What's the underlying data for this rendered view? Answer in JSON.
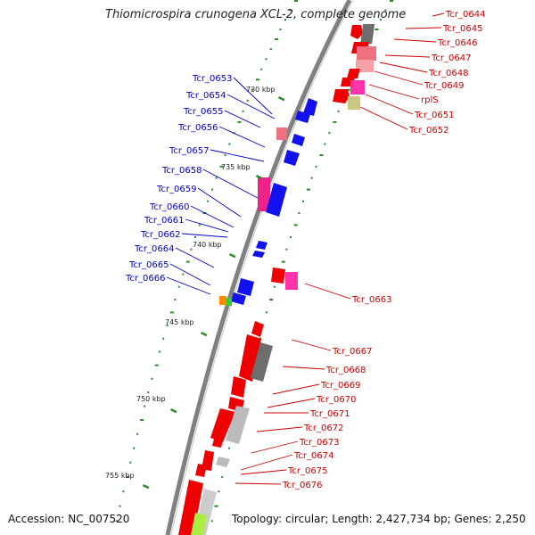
{
  "title": "Thiomicrospira crunogena XCL-2, complete genome",
  "footer": {
    "accession": "Accession: NC_007520",
    "summary": "Topology: circular; Length: 2,427,734 bp; Genes: 2,250"
  },
  "colors": {
    "forward_strand_label": "#cc0000",
    "reverse_strand_label": "#0000cc",
    "backbone": "#808080",
    "tick": "#2a8a2a"
  },
  "scale_labels": [
    "730 kbp",
    "735 kbp",
    "740 kbp",
    "745 kbp",
    "750 kbp",
    "755 kbp"
  ],
  "genes_right": [
    "Tcr_0644",
    "Tcr_0645",
    "Tcr_0646",
    "Tcr_0647",
    "Tcr_0648",
    "Tcr_0649",
    "rplS",
    "Tcr_0651",
    "Tcr_0652",
    "Tcr_0663",
    "Tcr_0667",
    "Tcr_0668",
    "Tcr_0669",
    "Tcr_0670",
    "Tcr_0671",
    "Tcr_0672",
    "Tcr_0673",
    "Tcr_0674",
    "Tcr_0675",
    "Tcr_0676"
  ],
  "genes_left": [
    "Tcr_0653",
    "Tcr_0654",
    "Tcr_0655",
    "Tcr_0656",
    "Tcr_0657",
    "Tcr_0658",
    "Tcr_0659",
    "Tcr_0660",
    "Tcr_0661",
    "Tcr_0662",
    "Tcr_0664",
    "Tcr_0665",
    "Tcr_0666"
  ]
}
